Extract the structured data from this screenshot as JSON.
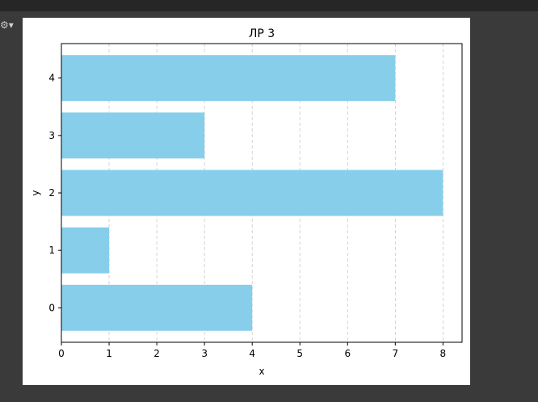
{
  "chart_data": {
    "type": "bar",
    "orientation": "horizontal",
    "title": "ЛР 3",
    "xlabel": "x",
    "ylabel": "y",
    "categories": [
      "0",
      "1",
      "2",
      "3",
      "4"
    ],
    "values": [
      4,
      1,
      8,
      3,
      7
    ],
    "xlim": [
      0,
      8.4
    ],
    "ylim": [
      -0.6,
      4.6
    ],
    "xticks": [
      0,
      1,
      2,
      3,
      4,
      5,
      6,
      7,
      8
    ],
    "yticks": [
      0,
      1,
      2,
      3,
      4
    ],
    "bar_color": "#87ceeb",
    "grid": "x-axis dashed",
    "grid_color": "#c8c8c8"
  },
  "ui": {
    "toolbar_icon": "configure-subplots-icon"
  }
}
